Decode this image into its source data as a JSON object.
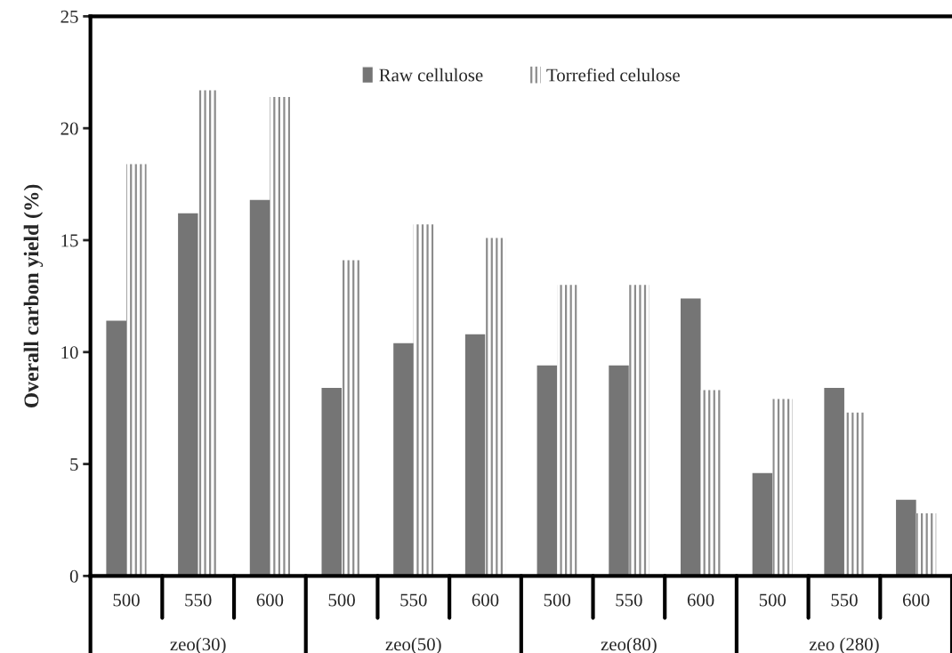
{
  "chart_data": {
    "type": "bar",
    "ylabel": "Overall carbon yield (%)",
    "categories": [
      "500",
      "550",
      "600",
      "500",
      "550",
      "600",
      "500",
      "550",
      "600",
      "500",
      "550",
      "600"
    ],
    "series": [
      {
        "name": "Raw cellulose",
        "color": "#757575",
        "values": [
          11.4,
          16.2,
          16.8,
          8.4,
          10.4,
          10.8,
          9.4,
          9.4,
          12.4,
          4.6,
          8.4,
          3.4
        ]
      },
      {
        "name": "Torrefied celulose",
        "color": "#8c8c8c",
        "values": [
          18.4,
          21.7,
          21.4,
          14.1,
          15.7,
          15.1,
          13.0,
          13.0,
          8.3,
          7.9,
          7.3,
          2.8
        ]
      }
    ],
    "annotations": [
      "zeo(30)",
      "zeo(50)",
      "zeo(80)",
      "zeo (280)"
    ],
    "ylim": [
      0,
      25
    ],
    "yticks": [
      0,
      5,
      10,
      15,
      20,
      25
    ],
    "grid": false,
    "legend": "top"
  }
}
